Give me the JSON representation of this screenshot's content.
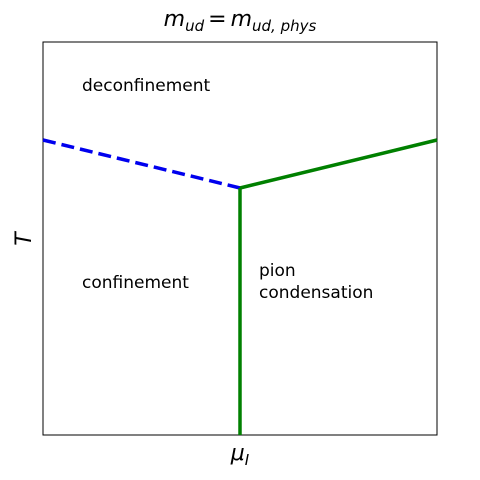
{
  "title": [
    "m",
    "ud",
    "=",
    "m",
    "ud, phys"
  ],
  "x_label": [
    "μ",
    "I"
  ],
  "y_label": "T",
  "regions": {
    "deconfinement": "deconfinement",
    "confinement": "confinement",
    "pion_condensation": [
      "pion",
      "condensation"
    ]
  }
}
